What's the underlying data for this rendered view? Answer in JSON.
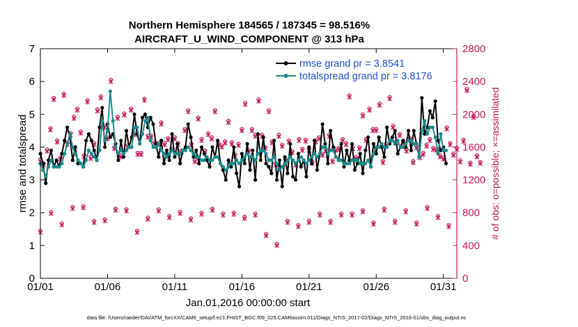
{
  "chart_data": {
    "type": "line",
    "title_line1": "Northern Hemisphere 184565 / 187345 = 98.516%",
    "title_line2": "AIRCRAFT_U_WIND_COMPONENT @ 313 hPa",
    "xlabel": "Jan.01,2016 00:00:00 start",
    "ylabel": "rmse and totalspread",
    "y2label": "# of obs: o=possible; ×=assimilated",
    "footnote": "data file: /Users/raeder/DAI/ATM_forcXX/CAM6_setup/f.e21.FHIST_BGC.f09_025.CAM6assim.011/Diags_NTrS_2017-02/Diags_NTrS_2016-01/obs_diag_output.nc",
    "x_tick_labels": [
      "01/01",
      "01/06",
      "01/11",
      "01/16",
      "01/21",
      "01/26",
      "01/31"
    ],
    "x_tick_days": [
      1,
      6,
      11,
      16,
      21,
      26,
      31
    ],
    "xlim_days": [
      1,
      32
    ],
    "ylim": [
      0,
      7
    ],
    "y_ticks": [
      0,
      1,
      2,
      3,
      4,
      5,
      6,
      7
    ],
    "y2lim": [
      0,
      2800
    ],
    "y2_ticks": [
      0,
      400,
      800,
      1200,
      1600,
      2000,
      2400,
      2800
    ],
    "legend": [
      {
        "name": "rmse grand pr = 3.8541",
        "color": "#000000"
      },
      {
        "name": "totalspread grand pr = 3.8176",
        "color": "#1a8a8a"
      }
    ],
    "colors": {
      "rmse": "#000000",
      "spread": "#1a8a8a",
      "obs": "#c2185b",
      "axis_right": "#c2185b"
    },
    "series": [
      {
        "name": "rmse",
        "values": [
          3.8,
          3.5,
          2.9,
          3.6,
          3.9,
          3.4,
          3.6,
          3.4,
          3.8,
          4.2,
          4.6,
          4.3,
          3.6,
          4.0,
          3.5,
          3.5,
          3.4,
          4.2,
          4.4,
          4.2,
          3.9,
          3.6,
          4.6,
          5.2,
          4.0,
          4.7,
          4.3,
          4.4,
          4.1,
          3.6,
          4.2,
          3.7,
          4.5,
          4.0,
          4.3,
          5.0,
          4.4,
          4.1,
          4.9,
          5.0,
          4.6,
          4.9,
          4.7,
          4.1,
          3.7,
          4.2,
          3.5,
          3.9,
          3.6,
          4.4,
          3.7,
          4.1,
          3.5,
          3.9,
          4.0,
          4.7,
          4.3,
          3.7,
          3.9,
          3.5,
          4.0,
          3.8,
          3.6,
          3.4,
          4.0,
          3.7,
          4.2,
          3.5,
          3.3,
          3.0,
          3.6,
          3.4,
          4.0,
          3.2,
          2.8,
          3.8,
          3.5,
          4.1,
          3.3,
          3.9,
          3.0,
          4.4,
          3.6,
          4.3,
          3.5,
          3.4,
          3.2,
          4.2,
          3.0,
          3.6,
          2.8,
          3.7,
          3.2,
          4.1,
          3.1,
          3.0,
          3.8,
          3.4,
          3.6,
          3.1,
          4.0,
          3.5,
          4.2,
          3.3,
          3.8,
          4.7,
          4.1,
          3.5,
          4.5,
          4.0,
          3.7,
          3.6,
          4.1,
          3.4,
          3.9,
          3.6,
          4.1,
          3.3,
          3.5,
          3.8,
          3.2,
          3.9,
          4.3,
          3.4,
          4.1,
          3.8,
          4.3,
          4.0,
          3.7,
          4.6,
          4.1,
          4.3,
          4.5,
          3.8,
          4.0,
          4.2,
          4.0,
          4.5,
          3.9,
          4.5,
          4.1,
          3.7,
          5.5,
          4.4,
          4.6,
          5.1,
          4.9,
          5.4,
          4.2,
          3.9,
          4.0,
          3.5
        ]
      },
      {
        "name": "totalspread",
        "values": [
          3.5,
          3.3,
          3.1,
          3.4,
          3.6,
          3.4,
          3.4,
          3.4,
          3.5,
          3.8,
          4.1,
          4.4,
          4.0,
          3.8,
          3.6,
          3.5,
          3.4,
          3.6,
          3.9,
          3.8,
          3.7,
          3.6,
          3.9,
          4.8,
          4.2,
          4.5,
          5.7,
          4.8,
          4.0,
          3.8,
          3.9,
          3.8,
          3.9,
          4.0,
          4.0,
          4.6,
          4.6,
          4.1,
          4.4,
          4.8,
          4.9,
          4.2,
          4.0,
          4.0,
          4.1,
          3.9,
          3.8,
          3.7,
          3.8,
          3.9,
          3.8,
          3.8,
          3.8,
          3.9,
          3.9,
          4.0,
          3.9,
          3.8,
          3.7,
          3.7,
          3.6,
          3.6,
          3.7,
          3.6,
          3.6,
          3.7,
          3.7,
          3.5,
          3.4,
          3.3,
          3.4,
          3.5,
          3.5,
          3.6,
          3.5,
          3.6,
          3.7,
          3.8,
          3.7,
          3.7,
          3.6,
          3.8,
          3.9,
          3.9,
          3.8,
          3.6,
          3.6,
          3.7,
          3.5,
          3.3,
          3.4,
          3.5,
          3.6,
          3.7,
          3.6,
          3.5,
          3.6,
          3.7,
          3.6,
          3.5,
          3.6,
          3.7,
          3.8,
          3.7,
          3.8,
          4.0,
          4.0,
          3.8,
          3.9,
          3.9,
          3.7,
          3.6,
          3.6,
          3.5,
          3.5,
          3.5,
          3.6,
          3.6,
          3.6,
          3.5,
          3.5,
          3.5,
          3.6,
          3.4,
          3.8,
          4.0,
          4.0,
          4.1,
          4.0,
          4.0,
          4.2,
          4.2,
          4.1,
          4.2,
          4.0,
          4.0,
          4.1,
          4.2,
          4.2,
          4.1,
          4.1,
          3.7,
          4.5,
          4.8,
          4.4,
          4.6,
          4.6,
          4.3,
          3.8,
          4.4,
          3.9,
          3.9
        ]
      },
      {
        "name": "possible_obs_high",
        "values": [
          1450,
          1400,
          1570,
          1830,
          2200,
          1680,
          1470,
          2250,
          1650,
          1770,
          1970,
          2070,
          1790,
          1500,
          2170,
          1480,
          1650,
          2060,
          2220,
          1860,
          1720,
          2420,
          1600,
          1970,
          1500,
          2010,
          1620,
          2070,
          1770,
          1530,
          1530,
          2190,
          1740,
          1740,
          1660,
          1650,
          1900,
          1650,
          1710,
          1580,
          1720,
          1650,
          1560,
          1820,
          2050,
          1640,
          1440,
          1960,
          1700,
          1560,
          1770,
          1720,
          2050,
          1650,
          1620,
          1670,
          1920,
          1660,
          1510,
          1640,
          1820,
          2140,
          1560,
          1820,
          1750,
          2180,
          1750,
          1600,
          2050,
          1670,
          1400,
          1750,
          1630,
          1450,
          1680,
          1550,
          1400,
          1700,
          1580,
          1690,
          1580,
          1420,
          1680,
          1720,
          1520,
          1570,
          1750,
          1440,
          1580,
          1590,
          1700,
          1650,
          2230,
          1600,
          1480,
          1600,
          2000,
          1700,
          2070,
          1820,
          1820,
          2130,
          1430,
          1640,
          2210,
          1860,
          1670,
          1760,
          1670,
          1570,
          1710,
          1430,
          1610,
          1490,
          1530,
          1630,
          1700,
          1590,
          1580,
          1500,
          1470,
          1840,
          1650,
          1520,
          1590,
          1440,
          1690,
          2310,
          1410,
          1980,
          1500,
          1420
        ]
      },
      {
        "name": "assimilated_obs_high",
        "values": [
          1420,
          1380,
          1550,
          1810,
          2180,
          1660,
          1450,
          2230,
          1630,
          1750,
          1950,
          2050,
          1770,
          1480,
          2150,
          1460,
          1630,
          2040,
          2200,
          1840,
          1700,
          2400,
          1580,
          1950,
          1480,
          1990,
          1600,
          2050,
          1750,
          1510,
          1510,
          2170,
          1720,
          1720,
          1640,
          1630,
          1880,
          1630,
          1690,
          1560,
          1700,
          1630,
          1540,
          1800,
          2030,
          1620,
          1420,
          1940,
          1680,
          1540,
          1750,
          1700,
          2030,
          1630,
          1600,
          1650,
          1900,
          1640,
          1490,
          1620,
          1800,
          2120,
          1540,
          1800,
          1730,
          2160,
          1730,
          1580,
          2030,
          1650,
          1380,
          1730,
          1610,
          1430,
          1660,
          1530,
          1380,
          1680,
          1560,
          1670,
          1560,
          1400,
          1660,
          1700,
          1500,
          1550,
          1730,
          1420,
          1560,
          1570,
          1680,
          1630,
          2210,
          1580,
          1460,
          1580,
          1980,
          1680,
          2050,
          1800,
          1800,
          2110,
          1410,
          1620,
          2190,
          1840,
          1650,
          1740,
          1650,
          1550,
          1690,
          1410,
          1590,
          1470,
          1510,
          1610,
          1680,
          1570,
          1560,
          1480,
          1450,
          1820,
          1630,
          1500,
          1570,
          1420,
          1670,
          2290,
          1390,
          1960,
          1480,
          1400
        ]
      },
      {
        "name": "possible_obs_low",
        "values": [
          580,
          810,
          670,
          870,
          880,
          700,
          720,
          850,
          840,
          580,
          740,
          840,
          760,
          810,
          730,
          800,
          850,
          790,
          800,
          750,
          790,
          540,
          420,
          700,
          650,
          700,
          790,
          700,
          790,
          790,
          830,
          680,
          850,
          700,
          830,
          680,
          870,
          760,
          650
        ]
      },
      {
        "name": "assimilated_obs_low",
        "values": [
          560,
          790,
          650,
          850,
          860,
          680,
          700,
          830,
          820,
          560,
          720,
          820,
          740,
          790,
          710,
          780,
          830,
          770,
          780,
          730,
          770,
          520,
          400,
          680,
          630,
          680,
          770,
          680,
          770,
          770,
          810,
          660,
          830,
          680,
          810,
          660,
          850,
          740,
          630
        ]
      }
    ]
  }
}
